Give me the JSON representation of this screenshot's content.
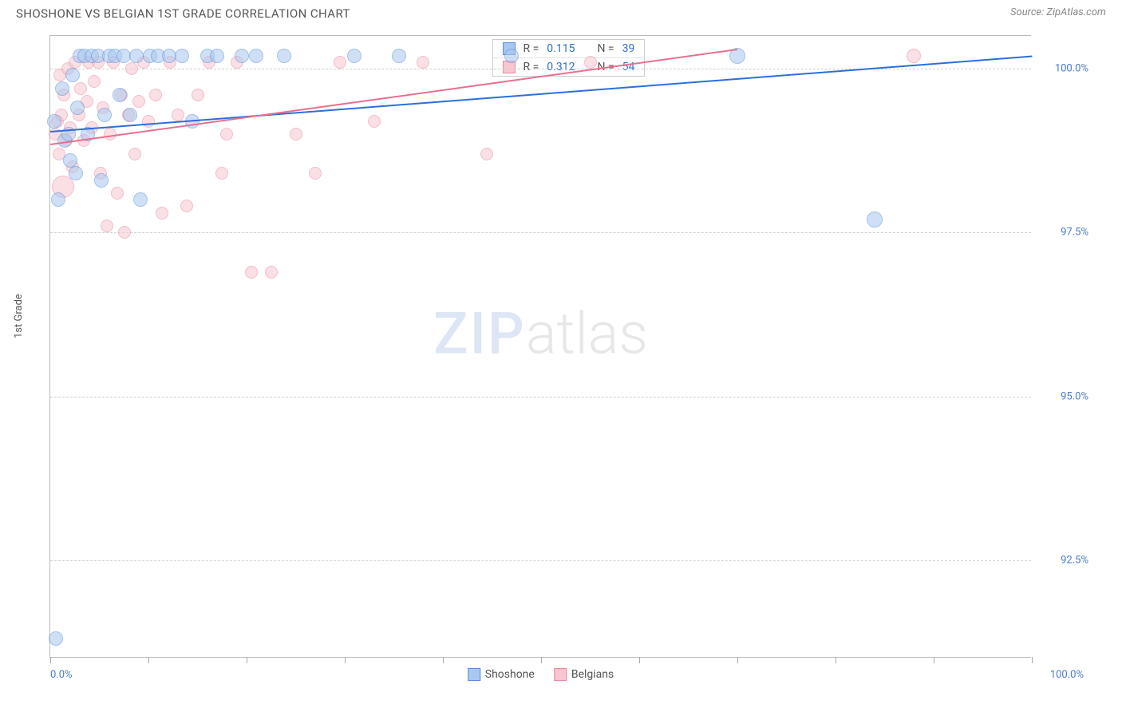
{
  "title": "SHOSHONE VS BELGIAN 1ST GRADE CORRELATION CHART",
  "source": "Source: ZipAtlas.com",
  "ylabel": "1st Grade",
  "watermark_a": "ZIP",
  "watermark_b": "atlas",
  "chart": {
    "type": "scatter",
    "background_color": "#ffffff",
    "grid_color": "#d0d0d0",
    "axis_color": "#bbbbbb",
    "label_color": "#4a7bd0",
    "x_domain": [
      0,
      100
    ],
    "y_domain": [
      91.0,
      100.5
    ],
    "y_ticks": [
      92.5,
      95.0,
      97.5,
      100.0
    ],
    "y_tick_labels": [
      "92.5%",
      "95.0%",
      "97.5%",
      "100.0%"
    ],
    "x_ticks": [
      0,
      10,
      20,
      30,
      40,
      50,
      60,
      70,
      80,
      90,
      100
    ],
    "x_axis_label_left": "0.0%",
    "x_axis_label_right": "100.0%",
    "marker_radius": 9,
    "marker_stroke_width": 1.4,
    "marker_opacity": 0.55,
    "trend_line_width": 2,
    "series": [
      {
        "name": "Shoshone",
        "fill": "#a9c8f0",
        "stroke": "#5a8fd6",
        "trend_color": "#2b6fd8",
        "R": 0.115,
        "N": 39,
        "trend": {
          "x1": 0,
          "y1": 99.05,
          "x2": 100,
          "y2": 100.2
        },
        "points": [
          {
            "x": 0.6,
            "y": 91.3,
            "r": 9
          },
          {
            "x": 0.4,
            "y": 99.2,
            "r": 9
          },
          {
            "x": 0.8,
            "y": 98.0,
            "r": 9
          },
          {
            "x": 1.2,
            "y": 99.7,
            "r": 9
          },
          {
            "x": 1.5,
            "y": 98.9,
            "r": 9
          },
          {
            "x": 1.9,
            "y": 99.0,
            "r": 9
          },
          {
            "x": 2.0,
            "y": 98.6,
            "r": 9
          },
          {
            "x": 2.3,
            "y": 99.9,
            "r": 9
          },
          {
            "x": 2.6,
            "y": 98.4,
            "r": 9
          },
          {
            "x": 2.8,
            "y": 99.4,
            "r": 9
          },
          {
            "x": 3.0,
            "y": 100.2,
            "r": 9
          },
          {
            "x": 3.5,
            "y": 100.2,
            "r": 9
          },
          {
            "x": 3.8,
            "y": 99.0,
            "r": 9
          },
          {
            "x": 4.2,
            "y": 100.2,
            "r": 9
          },
          {
            "x": 4.9,
            "y": 100.2,
            "r": 9
          },
          {
            "x": 5.2,
            "y": 98.3,
            "r": 9
          },
          {
            "x": 5.5,
            "y": 99.3,
            "r": 9
          },
          {
            "x": 6.0,
            "y": 100.2,
            "r": 9
          },
          {
            "x": 6.6,
            "y": 100.2,
            "r": 9
          },
          {
            "x": 7.1,
            "y": 99.6,
            "r": 9
          },
          {
            "x": 7.5,
            "y": 100.2,
            "r": 9
          },
          {
            "x": 8.1,
            "y": 99.3,
            "r": 9
          },
          {
            "x": 8.8,
            "y": 100.2,
            "r": 9
          },
          {
            "x": 9.2,
            "y": 98.0,
            "r": 9
          },
          {
            "x": 10.2,
            "y": 100.2,
            "r": 9
          },
          {
            "x": 11.0,
            "y": 100.2,
            "r": 9
          },
          {
            "x": 12.1,
            "y": 100.2,
            "r": 9
          },
          {
            "x": 13.4,
            "y": 100.2,
            "r": 9
          },
          {
            "x": 14.5,
            "y": 99.2,
            "r": 9
          },
          {
            "x": 16.0,
            "y": 100.2,
            "r": 9
          },
          {
            "x": 17.0,
            "y": 100.2,
            "r": 9
          },
          {
            "x": 19.5,
            "y": 100.2,
            "r": 9
          },
          {
            "x": 21.0,
            "y": 100.2,
            "r": 9
          },
          {
            "x": 23.8,
            "y": 100.2,
            "r": 9
          },
          {
            "x": 31.0,
            "y": 100.2,
            "r": 9
          },
          {
            "x": 35.5,
            "y": 100.2,
            "r": 9
          },
          {
            "x": 47.0,
            "y": 100.2,
            "r": 9
          },
          {
            "x": 70.0,
            "y": 100.2,
            "r": 10
          },
          {
            "x": 84.0,
            "y": 97.7,
            "r": 10
          }
        ]
      },
      {
        "name": "Belgians",
        "fill": "#f7c6d0",
        "stroke": "#e98aa0",
        "trend_color": "#e86f8d",
        "R": 0.312,
        "N": 54,
        "trend": {
          "x1": 0,
          "y1": 98.85,
          "x2": 70,
          "y2": 100.3
        },
        "points": [
          {
            "x": 0.5,
            "y": 99.0,
            "r": 8
          },
          {
            "x": 0.7,
            "y": 99.2,
            "r": 8
          },
          {
            "x": 0.9,
            "y": 98.7,
            "r": 8
          },
          {
            "x": 1.0,
            "y": 99.9,
            "r": 8
          },
          {
            "x": 1.1,
            "y": 99.3,
            "r": 8
          },
          {
            "x": 1.3,
            "y": 98.2,
            "r": 14
          },
          {
            "x": 1.4,
            "y": 99.6,
            "r": 8
          },
          {
            "x": 1.6,
            "y": 98.9,
            "r": 8
          },
          {
            "x": 1.8,
            "y": 100.0,
            "r": 8
          },
          {
            "x": 2.0,
            "y": 99.1,
            "r": 8
          },
          {
            "x": 2.3,
            "y": 98.5,
            "r": 8
          },
          {
            "x": 2.5,
            "y": 100.1,
            "r": 8
          },
          {
            "x": 2.9,
            "y": 99.3,
            "r": 8
          },
          {
            "x": 3.1,
            "y": 99.7,
            "r": 8
          },
          {
            "x": 3.4,
            "y": 98.9,
            "r": 8
          },
          {
            "x": 3.7,
            "y": 99.5,
            "r": 8
          },
          {
            "x": 3.9,
            "y": 100.1,
            "r": 8
          },
          {
            "x": 4.2,
            "y": 99.1,
            "r": 8
          },
          {
            "x": 4.5,
            "y": 99.8,
            "r": 8
          },
          {
            "x": 4.9,
            "y": 100.1,
            "r": 8
          },
          {
            "x": 5.1,
            "y": 98.4,
            "r": 8
          },
          {
            "x": 5.4,
            "y": 99.4,
            "r": 8
          },
          {
            "x": 5.8,
            "y": 97.6,
            "r": 8
          },
          {
            "x": 6.1,
            "y": 99.0,
            "r": 8
          },
          {
            "x": 6.4,
            "y": 100.1,
            "r": 8
          },
          {
            "x": 6.8,
            "y": 98.1,
            "r": 8
          },
          {
            "x": 7.2,
            "y": 99.6,
            "r": 8
          },
          {
            "x": 7.6,
            "y": 97.5,
            "r": 8
          },
          {
            "x": 8.0,
            "y": 99.3,
            "r": 8
          },
          {
            "x": 8.3,
            "y": 100.0,
            "r": 8
          },
          {
            "x": 8.6,
            "y": 98.7,
            "r": 8
          },
          {
            "x": 9.0,
            "y": 99.5,
            "r": 8
          },
          {
            "x": 9.5,
            "y": 100.1,
            "r": 8
          },
          {
            "x": 10.0,
            "y": 99.2,
            "r": 8
          },
          {
            "x": 10.7,
            "y": 99.6,
            "r": 8
          },
          {
            "x": 11.4,
            "y": 97.8,
            "r": 8
          },
          {
            "x": 12.2,
            "y": 100.1,
            "r": 8
          },
          {
            "x": 13.0,
            "y": 99.3,
            "r": 8
          },
          {
            "x": 13.9,
            "y": 97.9,
            "r": 8
          },
          {
            "x": 15.0,
            "y": 99.6,
            "r": 8
          },
          {
            "x": 16.2,
            "y": 100.1,
            "r": 8
          },
          {
            "x": 17.5,
            "y": 98.4,
            "r": 8
          },
          {
            "x": 18.0,
            "y": 99.0,
            "r": 8
          },
          {
            "x": 19.0,
            "y": 100.1,
            "r": 8
          },
          {
            "x": 20.5,
            "y": 96.9,
            "r": 8
          },
          {
            "x": 22.5,
            "y": 96.9,
            "r": 8
          },
          {
            "x": 25.0,
            "y": 99.0,
            "r": 8
          },
          {
            "x": 27.0,
            "y": 98.4,
            "r": 8
          },
          {
            "x": 29.5,
            "y": 100.1,
            "r": 8
          },
          {
            "x": 33.0,
            "y": 99.2,
            "r": 8
          },
          {
            "x": 38.0,
            "y": 100.1,
            "r": 8
          },
          {
            "x": 44.5,
            "y": 98.7,
            "r": 8
          },
          {
            "x": 55.0,
            "y": 100.1,
            "r": 8
          },
          {
            "x": 88.0,
            "y": 100.2,
            "r": 9
          }
        ]
      }
    ],
    "stats_box": {
      "left_pct": 45,
      "top_pct": 0.5
    },
    "legend_label_a": "Shoshone",
    "legend_label_b": "Belgians"
  }
}
